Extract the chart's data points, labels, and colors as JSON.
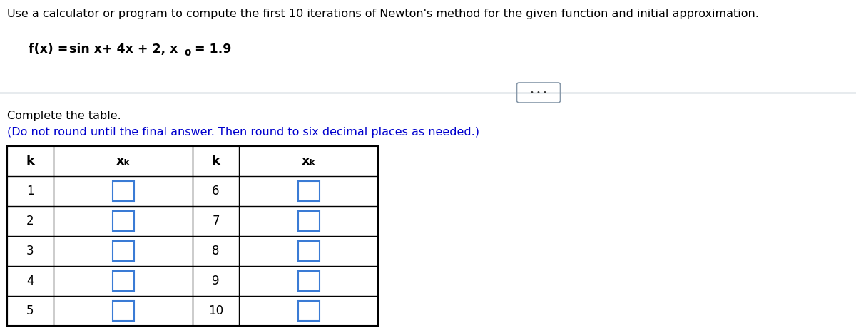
{
  "title_text": "Use a calculator or program to compute the first 10 iterations of Newton's method for the given function and initial approximation.",
  "complete_text": "Complete the table.",
  "instruction_text": "(Do not round until the final answer. Then round to six decimal places as needed.)",
  "k_left": [
    1,
    2,
    3,
    4,
    5
  ],
  "k_right": [
    6,
    7,
    8,
    9,
    10
  ],
  "bg_color": "#ffffff",
  "text_color": "#000000",
  "blue_color": "#0000cd",
  "input_box_color": "#3a7bd5",
  "title_fontsize": 11.5,
  "formula_fontsize": 12.5,
  "table_fontsize": 12,
  "separator_color": "#8899aa",
  "ellipsis_border_color": "#8899aa",
  "ellipsis_bg": "#ffffff",
  "ellipsis_dot_color": "#333333"
}
